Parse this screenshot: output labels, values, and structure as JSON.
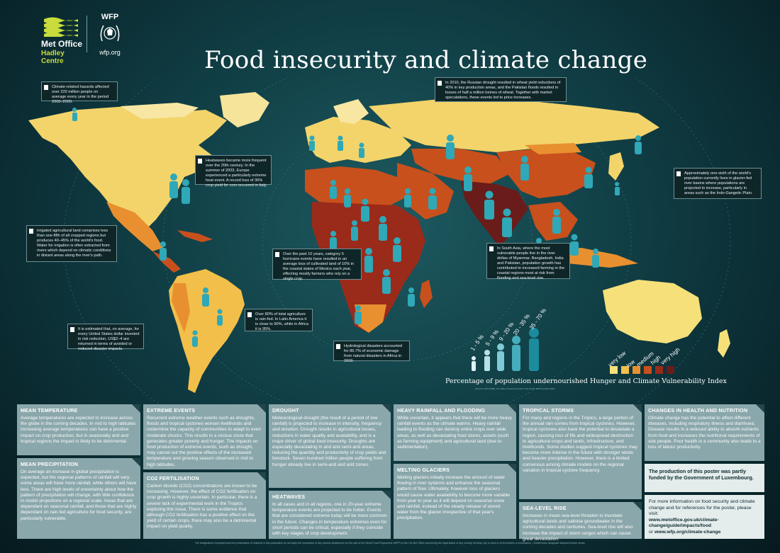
{
  "header": {
    "title": "Food insecurity and climate change",
    "met_office_name": "Met Office",
    "met_office_sub": "Hadley Centre",
    "wfp_name": "WFP",
    "wfp_url": "wfp.org"
  },
  "callouts": [
    {
      "id": "hazards",
      "text": "Climate-related hazards affected over 220 million people on average every year in the period 2000–2009."
    },
    {
      "id": "russia",
      "text": "In 2010, the Russian drought resulted in wheat yield reductions of 40% in key production areas, and the Pakistan floods resulted in losses of half a million tonnes of wheat. Together with market speculations, these events led to price increases."
    },
    {
      "id": "heatwaves",
      "text": "Heatwaves became more frequent over the 20th century. In the summer of 2003, Europe experienced a particularly extreme heat event. A record loss of 36% crop yield for corn occurred in Italy."
    },
    {
      "id": "glacier",
      "text": "Approximately one-sixth of the world's population currently lives in glacier-fed river basins where populations are projected to increase, particularly in areas such as the Indo-Gangetic Plain."
    },
    {
      "id": "irrigated",
      "text": "Irrigated agricultural land comprises less than one-fifth of all cropped regions but produces 40–45% of the world's food. Water for irrigation is often extracted from rivers which depend on climatic conditions in distant areas along the river's path."
    },
    {
      "id": "hurricanes",
      "text": "Over the past 10 years, category 5 hurricane events have resulted in an average loss of cultivated land of 10% in the coastal states of Mexico each year, effecting mostly farmers who rely on a single crop."
    },
    {
      "id": "southasia",
      "text": "In South Asia, where the most vulnerable people live in the river deltas of Myanmar, Bangladesh, India and Pakistan, population growth has contributed to increased farming in the coastal regions most at risk from flooding and sea-level rise."
    },
    {
      "id": "rainfed",
      "text": "Over 80% of total agriculture is rain-fed. In Latin America it is close to 90%, while in Africa it is 95%."
    },
    {
      "id": "dollar",
      "text": "It is estimated that, on average, for every United States dollar invested in risk reduction, US$2–4 are returned in terms of avoided or reduced disaster impacts."
    },
    {
      "id": "hydro",
      "text": "Hydrological disasters accounted for 86.7% of economic damage from natural disasters in Africa in 2009."
    }
  ],
  "legend": {
    "population_title": "Percentage of population undernourished",
    "population_classes": [
      "1 - 5 %",
      "5 - 9 %",
      "9 - 20 %",
      "20 - 35 %",
      "35 - 70 %"
    ],
    "vulnerability_title": "Hunger and Climate Vulnerability Index",
    "vulnerability_labels": [
      "very low",
      "low",
      "medium",
      "high",
      "very high"
    ],
    "vulnerability_colors": [
      "#f5e07a",
      "#f1bf4a",
      "#e8902f",
      "#c8501c",
      "#9a2a1a",
      "#6a1c1a"
    ],
    "source": "Sources: FAO (2009): The State of Food Insecurity in the World; WFP and Met Office"
  },
  "panels": {
    "mean_temperature": {
      "heading": "MEAN TEMPERATURE",
      "body": "Average temperatures are expected to increase across the globe in the coming decades. In mid to high latitudes increasing average temperatures can have a positive impact on crop production, but in seasonally arid and tropical regions the impact is likely to be detrimental."
    },
    "mean_precipitation": {
      "heading": "MEAN PRECIPITATION",
      "body": "On average an increase in global precipitation is expected, but the regional patterns of rainfall will vary: some areas will have more rainfall, while others will have less. There are high levels of uncertainty about how the pattern of precipitation will change, with little confidence in model projections on a regional scale. Areas that are dependant on seasonal rainfall, and those that are highly dependant on rain-fed agriculture for food security, are particularly vulnerable."
    },
    "extreme_events": {
      "heading": "EXTREME EVENTS",
      "body": "Recurrent extreme weather events such as droughts, floods and tropical cyclones worsen livelihoods and undermine the capacity of communities to adapt to even moderate shocks. This results in a vicious circle that generates greater poverty and hunger. The impacts on food production of extreme events, such as drought, may cancel out the positive effects of the increased temperature and growing season observed in mid to high latitudes."
    },
    "co2": {
      "heading": "CO2 FERTILISATION",
      "body": "Carbon dioxide (CO2) concentrations are known to be increasing. However, the effect of CO2 fertilisation on crop growth is highly uncertain. In particular, there is a severe lack of experimental work in the Tropics exploring this issue. There is some evidence that although CO2 fertilisation has a positive effect on the yield of certain crops, there may also be a detrimental impact on yield quality."
    },
    "drought": {
      "heading": "DROUGHT",
      "body": "Meteorological drought (the result of a period of low rainfall) is projected to increase in intensity, frequency and duration. Drought results in agricultural losses, reductions in water quality and availability, and is a major driver of global food insecurity. Droughts are especially devastating in arid and semi-arid areas, reducing the quantity and productivity of crop yields and livestock. Seven hundred million people suffering from hunger already live in semi-arid and arid zones."
    },
    "heatwaves": {
      "heading": "HEATWAVES",
      "body": "In all cases and in all regions, one in 20-year extreme temperature events are projected to be hotter. Events that are considered extreme today will be more common in the future. Changes in temperature extremes even for short periods can be critical, especially if they coincide with key stages of crop development."
    },
    "heavy_rainfall": {
      "heading": "HEAVY RAINFALL AND FLOODING",
      "body": "While uncertain, it appears that there will be more heavy rainfall events as the climate warms. Heavy rainfall leading to flooding can destroy entire crops over wide areas, as well as devastating food stores, assets (such as farming equipment) and agricultural land (due to sedimentation)."
    },
    "melting_glaciers": {
      "heading": "MELTING GLACIERS",
      "body": "Melting glaciers initially increase the amount of water flowing in river systems and enhance the seasonal pattern of flow. Ultimately, however loss of glaciers would cause water availability to become more variable from year to year as it will depend on seasonal snow and rainfall, instead of the steady release of stored water from the glacier irrespective of that year's precipitation."
    },
    "tropical_storms": {
      "heading": "TROPICAL STORMS",
      "body": "For many arid regions in the Tropics, a large portion of the annual rain comes from tropical cyclones. However, tropical cyclones also have the potential to devastate a region, causing loss of life and widespread destruction to agricultural crops and lands, infrastructure, and livelihoods. Some studies suggest tropical cyclones may become more intense in the future with stronger winds and heavier precipitation. However, there is a limited consensus among climate models on the regional variation in tropical cyclone frequency."
    },
    "sea_level": {
      "heading": "SEA-LEVEL RISE",
      "body": "Increases in mean sea-level threaten to inundate agricultural lands and salinise groundwater in the coming decades and centuries. Sea-level rise will also increase the impact of storm surges which can cause great devastation."
    },
    "health": {
      "heading": "CHANGES IN HEALTH AND NUTRITION",
      "body": "Climate change has the potential to affect different diseases, including respiratory illness and diarrhoea. Disease results in a reduced ability to absorb nutrients from food and increases the nutritional requirements of sick people. Poor health in a community also leads to a loss of labour productivity."
    }
  },
  "funding": "The production of this poster was partly funded by the Government of Luxembourg.",
  "more_info": {
    "intro": "For more information on food security and climate change and for references for the poster, please visit:",
    "url1": "www.metoffice.gov.uk/climate-change/guide/impacts/food",
    "or": "or",
    "url2": "www.wfp.org/climate-change"
  },
  "footer": "The designations employed and the presentation of material in this publication do not imply the expression of any opinion whatsoever on the part of the World Food Programme (WFP) or the UK Met Office concerning the legal status of any country, territory, city or area or of its frontiers or boundaries. | Dotted lines designate disputed border areas."
}
